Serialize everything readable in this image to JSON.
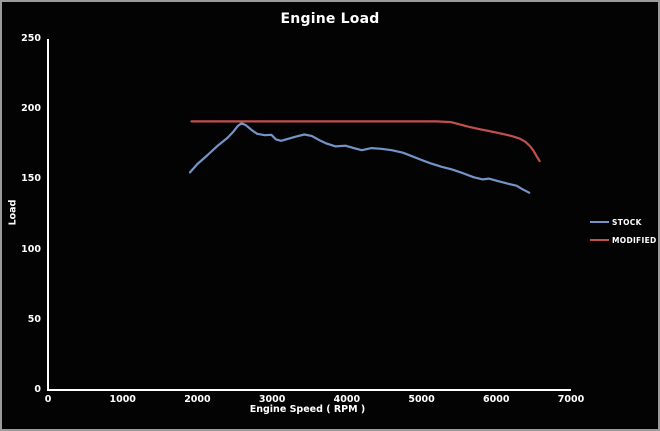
{
  "chart_data": {
    "type": "line",
    "title": "Engine Load",
    "xlabel": "Engine Speed ( RPM )",
    "ylabel": "Load",
    "xlim": [
      0,
      7000
    ],
    "ylim": [
      0,
      250
    ],
    "x_tick_labels": [
      "0",
      "1000",
      "2000",
      "3000",
      "4000",
      "5000",
      "6000",
      "7000"
    ],
    "x_tick_values": [
      0,
      1000,
      2000,
      3000,
      4000,
      5000,
      6000,
      7000
    ],
    "y_tick_labels": [
      "0",
      "50",
      "100",
      "150",
      "200",
      "250"
    ],
    "y_tick_values": [
      0,
      50,
      100,
      150,
      200,
      250
    ],
    "grid": false,
    "legend_position": "right",
    "series": [
      {
        "name": "STOCK",
        "color": "#7494C9",
        "points": [
          [
            1900,
            155
          ],
          [
            2000,
            161
          ],
          [
            2130,
            167
          ],
          [
            2260,
            173.5
          ],
          [
            2400,
            179.5
          ],
          [
            2480,
            184
          ],
          [
            2540,
            188
          ],
          [
            2590,
            190
          ],
          [
            2650,
            188.5
          ],
          [
            2730,
            185
          ],
          [
            2800,
            182.5
          ],
          [
            2900,
            181.5
          ],
          [
            2990,
            181.8
          ],
          [
            3050,
            178.5
          ],
          [
            3120,
            177.5
          ],
          [
            3220,
            179
          ],
          [
            3320,
            180.5
          ],
          [
            3430,
            182
          ],
          [
            3530,
            181
          ],
          [
            3630,
            178
          ],
          [
            3730,
            175.5
          ],
          [
            3850,
            173.5
          ],
          [
            3980,
            174
          ],
          [
            4080,
            172.5
          ],
          [
            4200,
            170.8
          ],
          [
            4330,
            172.3
          ],
          [
            4460,
            171.8
          ],
          [
            4600,
            170.8
          ],
          [
            4750,
            169
          ],
          [
            4870,
            166.5
          ],
          [
            5000,
            163.8
          ],
          [
            5120,
            161.5
          ],
          [
            5270,
            159
          ],
          [
            5400,
            157.2
          ],
          [
            5550,
            154.5
          ],
          [
            5700,
            151.5
          ],
          [
            5820,
            150
          ],
          [
            5900,
            150.6
          ],
          [
            6020,
            148.8
          ],
          [
            6150,
            147
          ],
          [
            6270,
            145.5
          ],
          [
            6350,
            143
          ],
          [
            6440,
            140.5
          ]
        ]
      },
      {
        "name": "MODIFIED",
        "color": "#C0504D",
        "points": [
          [
            1920,
            191.3
          ],
          [
            2400,
            191.3
          ],
          [
            2900,
            191.3
          ],
          [
            3400,
            191.3
          ],
          [
            3900,
            191.3
          ],
          [
            4400,
            191.3
          ],
          [
            4900,
            191.3
          ],
          [
            5200,
            191.3
          ],
          [
            5390,
            190.8
          ],
          [
            5500,
            189.3
          ],
          [
            5620,
            187.6
          ],
          [
            5760,
            186
          ],
          [
            5900,
            184.5
          ],
          [
            6050,
            182.8
          ],
          [
            6200,
            181
          ],
          [
            6310,
            179.2
          ],
          [
            6390,
            176.8
          ],
          [
            6450,
            173.8
          ],
          [
            6500,
            170.3
          ],
          [
            6540,
            166.5
          ],
          [
            6580,
            163
          ]
        ]
      }
    ]
  },
  "colors": {
    "background": "#030303",
    "frame_border": "#9b9b9b",
    "axis": "#ffffff",
    "text": "#ffffff",
    "stock_line": "#7494C9",
    "modified_line": "#C0504D"
  }
}
